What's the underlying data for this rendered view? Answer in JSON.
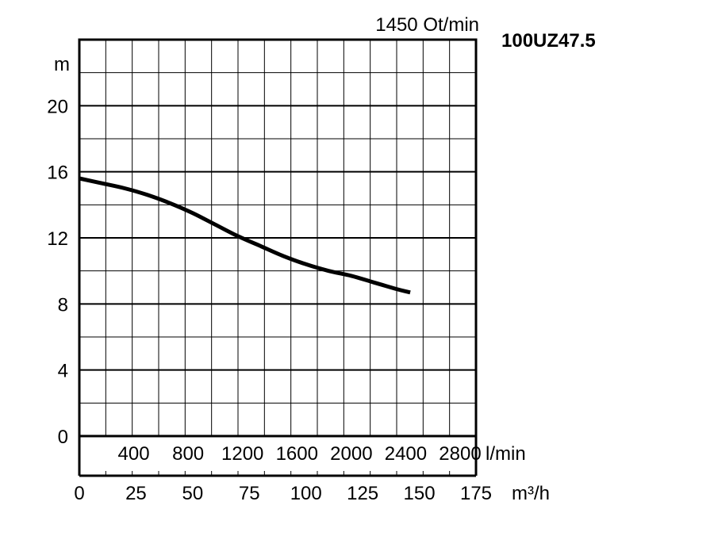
{
  "chart_data": {
    "type": "line",
    "title": "100UZ47.5",
    "speed_label": "1450 Ot/min",
    "ylabel": "m",
    "ylim": [
      0,
      20
    ],
    "y_ticks": [
      "0",
      "4",
      "8",
      "12",
      "16",
      "20"
    ],
    "y_tick_values": [
      0,
      4,
      8,
      12,
      16,
      20
    ],
    "x_lmin_unit": "l/min",
    "x_lmin_ticks": [
      "400",
      "800",
      "1200",
      "1600",
      "2000",
      "2400",
      "2800"
    ],
    "x_lmin_tick_values": [
      400,
      800,
      1200,
      1600,
      2000,
      2400,
      2800
    ],
    "x_m3h_unit": "m³/h",
    "x_m3h_ticks": [
      "0",
      "25",
      "50",
      "75",
      "100",
      "125",
      "150",
      "175"
    ],
    "x_m3h_tick_values": [
      0,
      25,
      50,
      75,
      100,
      125,
      150,
      175
    ],
    "xlim_m3h": [
      0,
      175
    ],
    "grid": true,
    "series": [
      {
        "x_m3h": [
          0,
          10,
          20,
          30,
          40,
          50,
          60,
          70,
          80,
          90,
          100,
          110,
          120,
          130,
          140,
          146
        ],
        "y_m": [
          15.6,
          15.3,
          15.0,
          14.6,
          14.1,
          13.5,
          12.8,
          12.1,
          11.5,
          10.9,
          10.4,
          10.0,
          9.7,
          9.3,
          8.9,
          8.7
        ]
      }
    ],
    "colors": {
      "curve": "#000000",
      "grid": "#000000"
    }
  }
}
